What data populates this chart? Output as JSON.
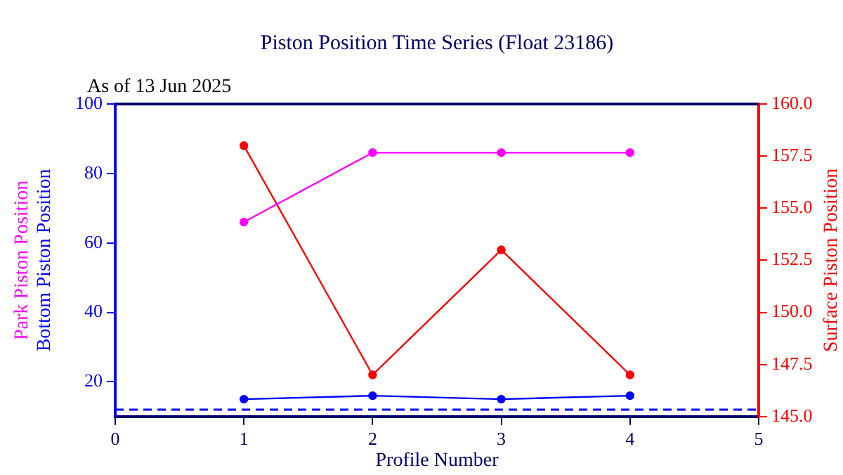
{
  "chart_data": {
    "type": "line",
    "title": "Piston Position Time Series (Float 23186)",
    "annotations": [
      "As of 13 Jun 2025"
    ],
    "xlabel": "Profile Number",
    "x": [
      1,
      2,
      3,
      4
    ],
    "xlim": [
      0,
      5
    ],
    "xticks": [
      0,
      1,
      2,
      3,
      4,
      5
    ],
    "ylim": [
      10,
      100
    ],
    "yticks": [
      20,
      40,
      60,
      80,
      100
    ],
    "y2lim": [
      145,
      160
    ],
    "y2ticks": [
      {
        "value": 145,
        "label": "145.0"
      },
      {
        "value": 147.5,
        "label": "147.5"
      },
      {
        "value": 150,
        "label": "150.0"
      },
      {
        "value": 152.5,
        "label": "152.5"
      },
      {
        "value": 155,
        "label": "155.0"
      },
      {
        "value": 157.5,
        "label": "157.5"
      },
      {
        "value": 160,
        "label": "160.0"
      }
    ],
    "series": [
      {
        "name": "Park Piston Position",
        "color": "#ff00ff",
        "values": [
          66,
          86,
          86,
          86
        ]
      },
      {
        "name": "Bottom Piston Position",
        "color": "#0000ff",
        "values": [
          15,
          16,
          15,
          16
        ]
      },
      {
        "name": "Surface Piston Position",
        "color": "#ff0000",
        "values": [
          158,
          147,
          153,
          147
        ],
        "axis": "y2"
      }
    ],
    "ref_lines": [
      {
        "axis": "y",
        "value": 12,
        "color": "#0000ff",
        "line_style": "dashed"
      }
    ],
    "marker": "circle",
    "line_style": "solid",
    "grid": false,
    "legend": false
  }
}
